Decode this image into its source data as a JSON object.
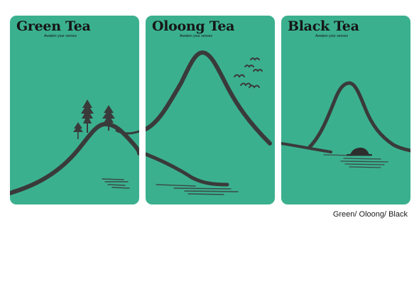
{
  "colors": {
    "card_background": "#3bb08f",
    "ink": "#3a3a3a",
    "title_text": "#161616",
    "page_background": "#ffffff"
  },
  "cards": [
    {
      "id": "green",
      "title": "Green Tea",
      "tagline": "Awaken your senses",
      "illustration": "mountain-with-pine-trees"
    },
    {
      "id": "oolong",
      "title": "Oloong Tea",
      "tagline": "Awaken your senses",
      "illustration": "tall-mountain-with-birds"
    },
    {
      "id": "black",
      "title": "Black Tea",
      "tagline": "Awaken your senses",
      "illustration": "mountain-with-boat"
    }
  ],
  "caption": "Green/ Oloong/ Black"
}
